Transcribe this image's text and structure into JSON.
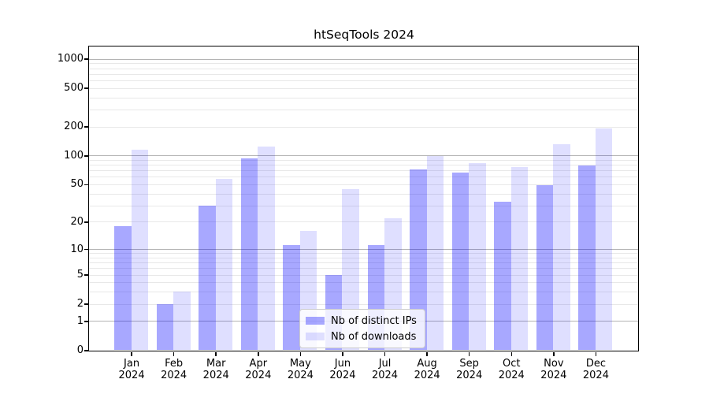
{
  "title": "htSeqTools 2024",
  "legend": {
    "items": [
      {
        "label": "Nb of distinct IPs"
      },
      {
        "label": "Nb of downloads"
      }
    ],
    "position": "lower center"
  },
  "chart_data": {
    "type": "bar",
    "title": "htSeqTools 2024",
    "categories": [
      "Jan",
      "Feb",
      "Mar",
      "Apr",
      "May",
      "Jun",
      "Jul",
      "Aug",
      "Sep",
      "Oct",
      "Nov",
      "Dec"
    ],
    "category_year_label": "2024",
    "series": [
      {
        "name": "Nb of distinct IPs",
        "color": "#0000FF57",
        "values": [
          18,
          2,
          30,
          94,
          11,
          5,
          11,
          72,
          66,
          33,
          49,
          79
        ]
      },
      {
        "name": "Nb of downloads",
        "color": "#0000FF20",
        "values": [
          115,
          3,
          57,
          125,
          16,
          45,
          22,
          99,
          83,
          76,
          130,
          190
        ]
      }
    ],
    "yscale": "log10(1+x)",
    "yticks": [
      0,
      1,
      2,
      5,
      10,
      20,
      50,
      100,
      200,
      500,
      1000
    ],
    "ylim": [
      0,
      1350
    ],
    "grid": {
      "major_lines": [
        1,
        10,
        100,
        1000
      ],
      "major_color": "#b4b4b4",
      "minor_color": "#e8e8e8",
      "minor_rule": "2-9 per decade"
    },
    "spine_color": "#000000",
    "legend_position": "lower center"
  }
}
